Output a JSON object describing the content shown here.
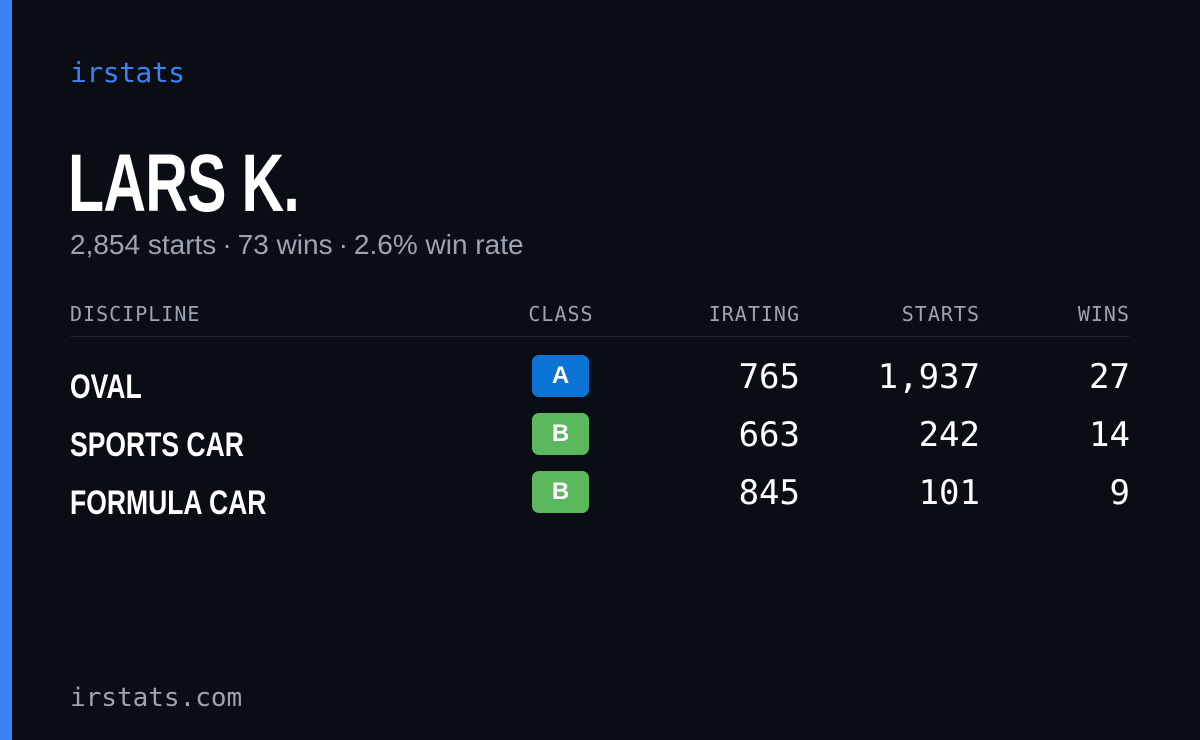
{
  "brand": "irstats",
  "driver": {
    "name": "LARS K.",
    "starts": "2,854 starts",
    "wins": "73 wins",
    "win_rate": "2.6% win rate",
    "separator": "·"
  },
  "table": {
    "headers": {
      "discipline": "DISCIPLINE",
      "class": "CLASS",
      "irating": "IRATING",
      "starts": "STARTS",
      "wins": "WINS"
    },
    "rows": [
      {
        "discipline": "OVAL",
        "class": "A",
        "class_color": "#0b74d6",
        "irating": "765",
        "starts": "1,937",
        "wins": "27"
      },
      {
        "discipline": "SPORTS CAR",
        "class": "B",
        "class_color": "#5cb85c",
        "irating": "663",
        "starts": "242",
        "wins": "14"
      },
      {
        "discipline": "FORMULA CAR",
        "class": "B",
        "class_color": "#5cb85c",
        "irating": "845",
        "starts": "101",
        "wins": "9"
      }
    ]
  },
  "footer": "irstats.com",
  "colors": {
    "background": "#0a0d14",
    "accent": "#3b82f6",
    "muted_text": "#9aa4b2",
    "text": "#ffffff"
  }
}
